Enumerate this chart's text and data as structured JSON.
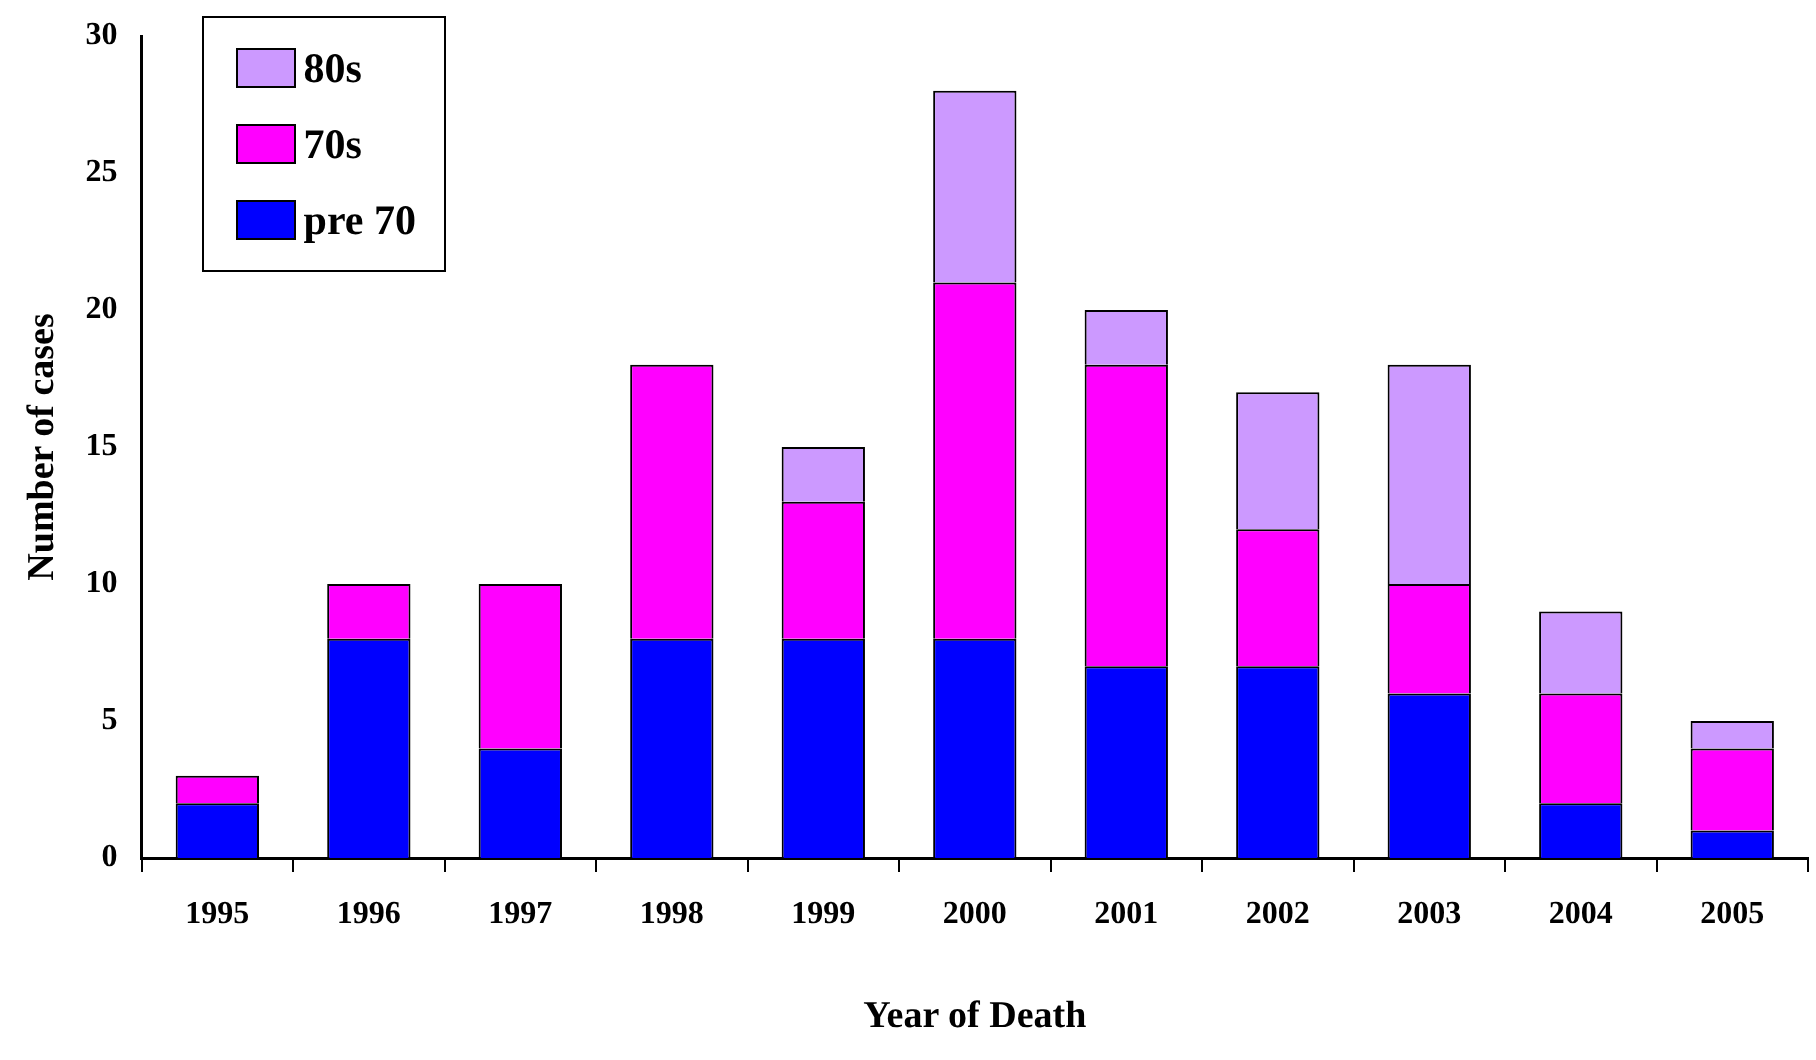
{
  "chart_data": {
    "type": "bar",
    "stacked": true,
    "xlabel": "Year of Death",
    "ylabel": "Number of cases",
    "categories": [
      "1995",
      "1996",
      "1997",
      "1998",
      "1999",
      "2000",
      "2001",
      "2002",
      "2003",
      "2004",
      "2005"
    ],
    "series": [
      {
        "name": "pre 70",
        "color": "#0000ff",
        "values": [
          2,
          8,
          4,
          8,
          8,
          8,
          7,
          7,
          6,
          2,
          1
        ]
      },
      {
        "name": "70s",
        "color": "#ff00ff",
        "values": [
          1,
          2,
          6,
          10,
          5,
          13,
          11,
          5,
          4,
          4,
          3
        ]
      },
      {
        "name": "80s",
        "color": "#cc99ff",
        "values": [
          0,
          0,
          0,
          0,
          2,
          7,
          2,
          5,
          8,
          3,
          1
        ]
      }
    ],
    "ylim": [
      0,
      30
    ],
    "yticks": [
      0,
      5,
      10,
      15,
      20,
      25,
      30
    ],
    "grid": false,
    "legend": "top left"
  }
}
